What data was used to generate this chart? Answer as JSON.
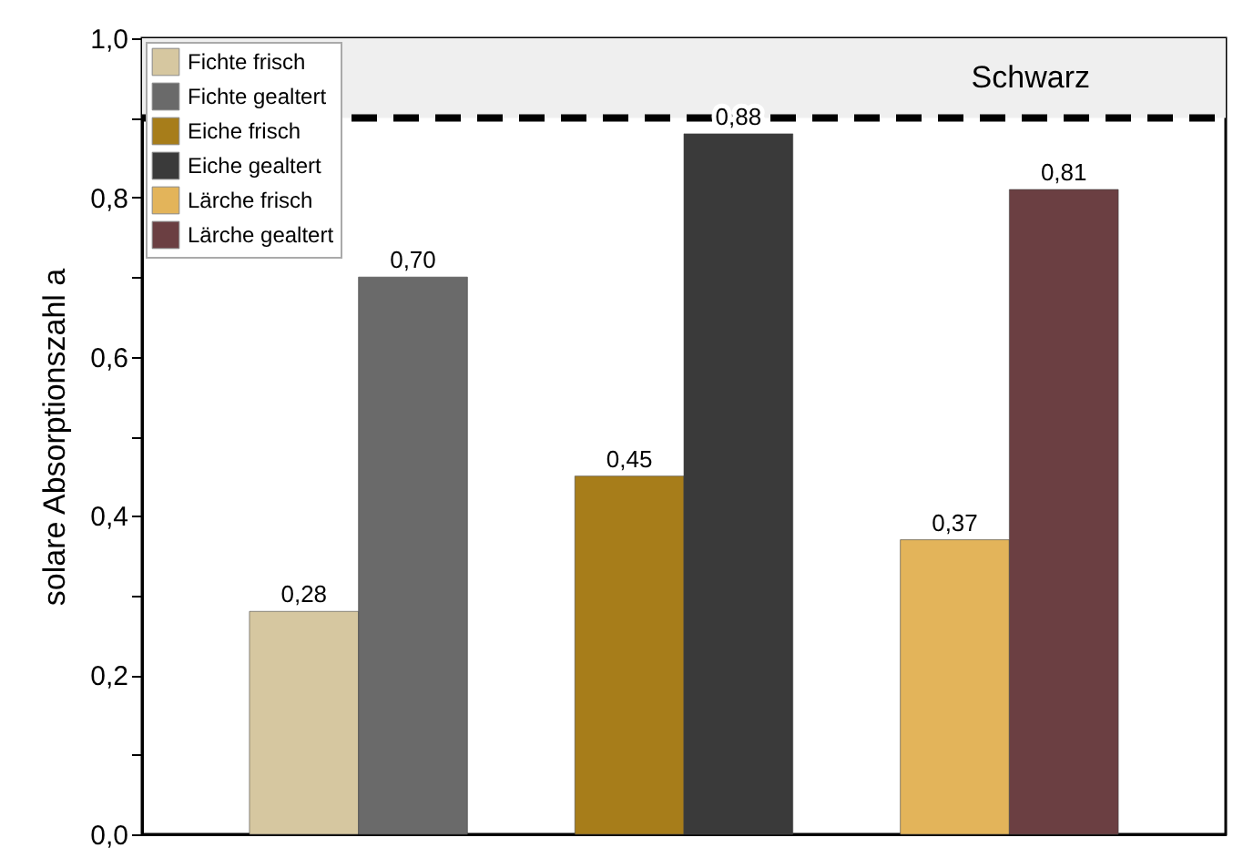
{
  "chart_data": {
    "type": "bar",
    "ylabel": "solare Absorptionszahl a",
    "categories": [
      null,
      null,
      null
    ],
    "series": [
      {
        "name": "Fichte frisch",
        "color": "#d6c7a0",
        "values": [
          0.28,
          null,
          null
        ],
        "value_labels": [
          "0,28",
          null,
          null
        ]
      },
      {
        "name": "Fichte gealtert",
        "color": "#6a6a6a",
        "values": [
          0.7,
          null,
          null
        ],
        "value_labels": [
          "0,70",
          null,
          null
        ]
      },
      {
        "name": "Eiche frisch",
        "color": "#a77d1a",
        "values": [
          null,
          0.45,
          null
        ],
        "value_labels": [
          null,
          "0,45",
          null
        ]
      },
      {
        "name": "Eiche gealtert",
        "color": "#3a3a3a",
        "values": [
          null,
          0.88,
          null
        ],
        "value_labels": [
          null,
          "0,88",
          null
        ]
      },
      {
        "name": "Lärche frisch",
        "color": "#e3b45a",
        "values": [
          null,
          null,
          0.37
        ],
        "value_labels": [
          null,
          null,
          "0,37"
        ]
      },
      {
        "name": "Lärche gealtert",
        "color": "#6b3f42",
        "values": [
          null,
          null,
          0.81
        ],
        "value_labels": [
          null,
          null,
          "0,81"
        ]
      }
    ],
    "ylim": [
      0,
      1.0
    ],
    "yticks": [
      {
        "value": 0,
        "label": "0,0"
      },
      {
        "value": 0.1,
        "label": null
      },
      {
        "value": 0.2,
        "label": "0,2"
      },
      {
        "value": 0.3,
        "label": null
      },
      {
        "value": 0.4,
        "label": "0,4"
      },
      {
        "value": 0.5,
        "label": null
      },
      {
        "value": 0.6,
        "label": "0,6"
      },
      {
        "value": 0.7,
        "label": null
      },
      {
        "value": 0.8,
        "label": "0,8"
      },
      {
        "value": 0.9,
        "label": null
      },
      {
        "value": 1.0,
        "label": "1,0"
      }
    ],
    "ref_lines": [
      {
        "axis": "y",
        "value": 0.9,
        "color": "#000000",
        "line_style": "dashed"
      }
    ],
    "bands": [
      {
        "axis": "y",
        "from": 0.9,
        "to": 1.0,
        "label": "Schwarz",
        "color": "#efefef"
      }
    ],
    "legend": "top left",
    "tick_labels": "y",
    "grid": false
  }
}
